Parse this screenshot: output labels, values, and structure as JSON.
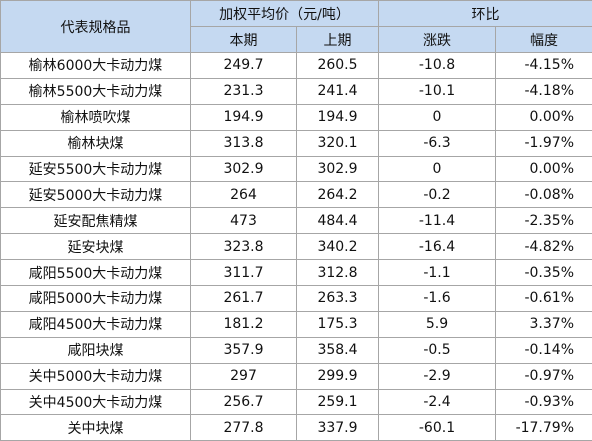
{
  "table": {
    "header": {
      "spec": "代表规格品",
      "price_group": "加权平均价（元/吨）",
      "change_group": "环比",
      "current": "本期",
      "previous": "上期",
      "delta": "涨跌",
      "pct": "幅度"
    },
    "rows": [
      [
        "榆林6000大卡动力煤",
        "249.7",
        "260.5",
        "-10.8",
        "-4.15%"
      ],
      [
        "榆林5500大卡动力煤",
        "231.3",
        "241.4",
        "-10.1",
        "-4.18%"
      ],
      [
        "榆林喷吹煤",
        "194.9",
        "194.9",
        "0",
        "0.00%"
      ],
      [
        "榆林块煤",
        "313.8",
        "320.1",
        "-6.3",
        "-1.97%"
      ],
      [
        "延安5500大卡动力煤",
        "302.9",
        "302.9",
        "0",
        "0.00%"
      ],
      [
        "延安5000大卡动力煤",
        "264",
        "264.2",
        "-0.2",
        "-0.08%"
      ],
      [
        "延安配焦精煤",
        "473",
        "484.4",
        "-11.4",
        "-2.35%"
      ],
      [
        "延安块煤",
        "323.8",
        "340.2",
        "-16.4",
        "-4.82%"
      ],
      [
        "咸阳5500大卡动力煤",
        "311.7",
        "312.8",
        "-1.1",
        "-0.35%"
      ],
      [
        "咸阳5000大卡动力煤",
        "261.7",
        "263.3",
        "-1.6",
        "-0.61%"
      ],
      [
        "咸阳4500大卡动力煤",
        "181.2",
        "175.3",
        "5.9",
        "3.37%"
      ],
      [
        "咸阳块煤",
        "357.9",
        "358.4",
        "-0.5",
        "-0.14%"
      ],
      [
        "关中5000大卡动力煤",
        "297",
        "299.9",
        "-2.9",
        "-0.97%"
      ],
      [
        "关中4500大卡动力煤",
        "256.7",
        "259.1",
        "-2.4",
        "-0.93%"
      ],
      [
        "关中块煤",
        "277.8",
        "337.9",
        "-60.1",
        "-17.79%"
      ]
    ]
  }
}
